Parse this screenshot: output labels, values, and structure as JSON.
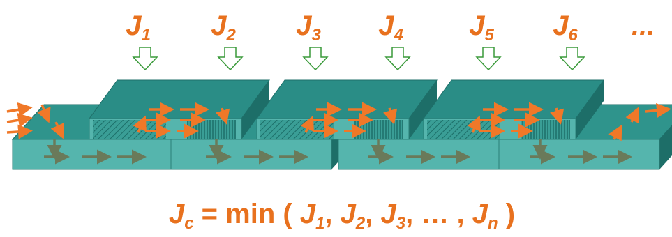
{
  "labels": [
    {
      "main": "J",
      "sub": "1"
    },
    {
      "main": "J",
      "sub": "2"
    },
    {
      "main": "J",
      "sub": "3"
    },
    {
      "main": "J",
      "sub": "4"
    },
    {
      "main": "J",
      "sub": "5"
    },
    {
      "main": "J",
      "sub": "6"
    }
  ],
  "more": "...",
  "formula": [
    {
      "main": "J",
      "sub": "c"
    },
    {
      "main": " = min ( "
    },
    {
      "main": "J",
      "sub": "1"
    },
    {
      "main": ", "
    },
    {
      "main": "J",
      "sub": "2"
    },
    {
      "main": ", "
    },
    {
      "main": "J",
      "sub": "3"
    },
    {
      "main": ", … , "
    },
    {
      "main": "J",
      "sub": "n"
    },
    {
      "main": " )"
    }
  ]
}
